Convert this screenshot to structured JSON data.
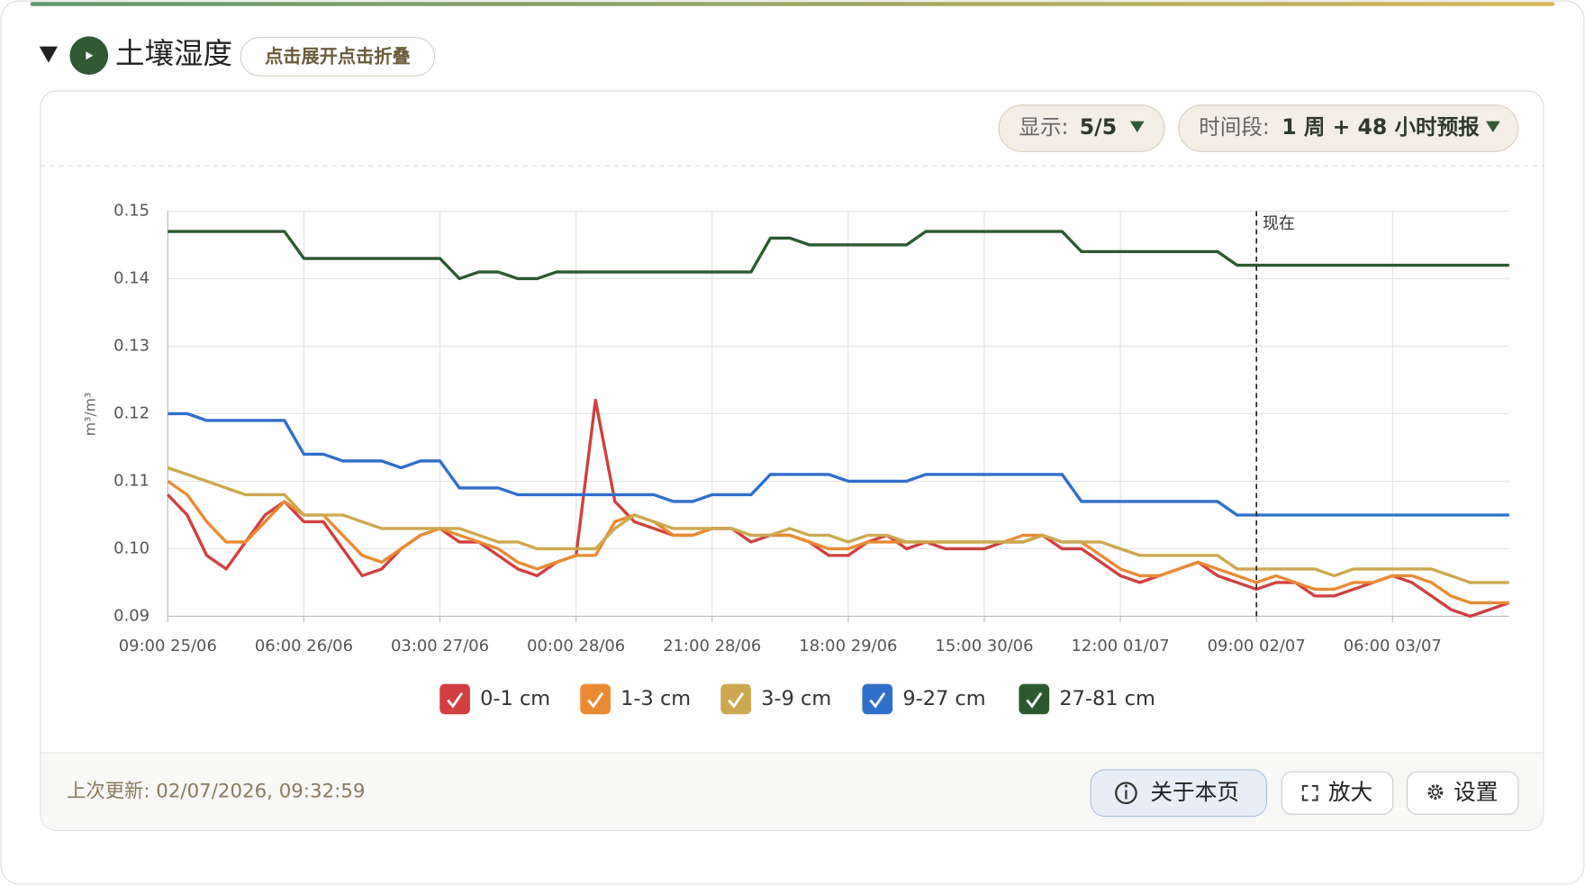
{
  "header": {
    "title": "土壤湿度",
    "toggle": "点击展开点击折叠"
  },
  "controls": {
    "display_label": "显示:",
    "display_value": "5/5",
    "period_label": "时间段:",
    "period_value": "1 周 + 48 小时预报"
  },
  "chart_data": {
    "type": "line",
    "y_label": "m³/m³",
    "grid": true,
    "categories": [
      "09:00 25/06",
      null,
      null,
      null,
      null,
      null,
      null,
      "06:00 26/06",
      null,
      null,
      null,
      null,
      null,
      null,
      "03:00 27/06",
      null,
      null,
      null,
      null,
      null,
      null,
      "00:00 28/06",
      null,
      null,
      null,
      null,
      null,
      null,
      "21:00 28/06",
      null,
      null,
      null,
      null,
      null,
      null,
      "18:00 29/06",
      null,
      null,
      null,
      null,
      null,
      null,
      "15:00 30/06",
      null,
      null,
      null,
      null,
      null,
      null,
      "12:00 01/07",
      null,
      null,
      null,
      null,
      null,
      null,
      "09:00 02/07",
      null,
      null,
      null,
      null,
      null,
      null,
      "06:00 03/07",
      null,
      null,
      null,
      null,
      null,
      null
    ],
    "ylim": [
      0.09,
      0.15
    ],
    "yticks": [
      0.09,
      {
        "value": 0.1,
        "label": "0.10"
      },
      0.11,
      0.12,
      0.13,
      0.14,
      0.15
    ],
    "annotations": [
      {
        "text": "现在",
        "x": "09:00 02/07"
      }
    ],
    "series": [
      {
        "name": "0-1 cm",
        "color": "#d13f3f",
        "values": [
          0.108,
          0.105,
          0.099,
          0.097,
          0.101,
          0.105,
          0.107,
          0.104,
          0.104,
          0.1,
          0.096,
          0.097,
          0.1,
          0.102,
          0.103,
          0.101,
          0.101,
          0.099,
          0.097,
          0.096,
          0.098,
          0.099,
          0.122,
          0.107,
          0.104,
          0.103,
          0.102,
          0.102,
          0.103,
          0.103,
          0.101,
          0.102,
          0.102,
          0.101,
          0.099,
          0.099,
          0.101,
          0.102,
          0.1,
          0.101,
          0.1,
          0.1,
          0.1,
          0.101,
          0.101,
          0.102,
          0.1,
          0.1,
          0.098,
          0.096,
          0.095,
          0.096,
          0.097,
          0.098,
          0.096,
          0.095,
          0.094,
          0.095,
          0.095,
          0.093,
          0.093,
          0.094,
          0.095,
          0.096,
          0.095,
          0.093,
          0.091,
          0.09,
          0.091,
          0.092
        ]
      },
      {
        "name": "1-3 cm",
        "color": "#ea8a33",
        "values": [
          0.11,
          0.108,
          0.104,
          0.101,
          0.101,
          0.104,
          0.107,
          0.105,
          0.105,
          0.102,
          0.099,
          0.098,
          0.1,
          0.102,
          0.103,
          0.102,
          0.101,
          0.1,
          0.098,
          0.097,
          0.098,
          0.099,
          0.099,
          0.104,
          0.105,
          0.104,
          0.102,
          0.102,
          0.103,
          0.103,
          0.102,
          0.102,
          0.102,
          0.101,
          0.1,
          0.1,
          0.101,
          0.101,
          0.101,
          0.101,
          0.101,
          0.101,
          0.101,
          0.101,
          0.102,
          0.102,
          0.101,
          0.101,
          0.099,
          0.097,
          0.096,
          0.096,
          0.097,
          0.098,
          0.097,
          0.096,
          0.095,
          0.096,
          0.095,
          0.094,
          0.094,
          0.095,
          0.095,
          0.096,
          0.096,
          0.095,
          0.093,
          0.092,
          0.092,
          0.092
        ]
      },
      {
        "name": "3-9 cm",
        "color": "#cda850",
        "values": [
          0.112,
          0.111,
          0.11,
          0.109,
          0.108,
          0.108,
          0.108,
          0.105,
          0.105,
          0.105,
          0.104,
          0.103,
          0.103,
          0.103,
          0.103,
          0.103,
          0.102,
          0.101,
          0.101,
          0.1,
          0.1,
          0.1,
          0.1,
          0.103,
          0.105,
          0.104,
          0.103,
          0.103,
          0.103,
          0.103,
          0.102,
          0.102,
          0.103,
          0.102,
          0.102,
          0.101,
          0.102,
          0.102,
          0.101,
          0.101,
          0.101,
          0.101,
          0.101,
          0.101,
          0.101,
          0.102,
          0.101,
          0.101,
          0.101,
          0.1,
          0.099,
          0.099,
          0.099,
          0.099,
          0.099,
          0.097,
          0.097,
          0.097,
          0.097,
          0.097,
          0.096,
          0.097,
          0.097,
          0.097,
          0.097,
          0.097,
          0.096,
          0.095,
          0.095,
          0.095
        ]
      },
      {
        "name": "9-27 cm",
        "color": "#2e6fcc",
        "values": [
          0.12,
          0.12,
          0.119,
          0.119,
          0.119,
          0.119,
          0.119,
          0.114,
          0.114,
          0.113,
          0.113,
          0.113,
          0.112,
          0.113,
          0.113,
          0.109,
          0.109,
          0.109,
          0.108,
          0.108,
          0.108,
          0.108,
          0.108,
          0.108,
          0.108,
          0.108,
          0.107,
          0.107,
          0.108,
          0.108,
          0.108,
          0.111,
          0.111,
          0.111,
          0.111,
          0.11,
          0.11,
          0.11,
          0.11,
          0.111,
          0.111,
          0.111,
          0.111,
          0.111,
          0.111,
          0.111,
          0.111,
          0.107,
          0.107,
          0.107,
          0.107,
          0.107,
          0.107,
          0.107,
          0.107,
          0.105,
          0.105,
          0.105,
          0.105,
          0.105,
          0.105,
          0.105,
          0.105,
          0.105,
          0.105,
          0.105,
          0.105,
          0.105,
          0.105,
          0.105
        ]
      },
      {
        "name": "27-81 cm",
        "color": "#2b5a2f",
        "values": [
          0.147,
          0.147,
          0.147,
          0.147,
          0.147,
          0.147,
          0.147,
          0.143,
          0.143,
          0.143,
          0.143,
          0.143,
          0.143,
          0.143,
          0.143,
          0.14,
          0.141,
          0.141,
          0.14,
          0.14,
          0.141,
          0.141,
          0.141,
          0.141,
          0.141,
          0.141,
          0.141,
          0.141,
          0.141,
          0.141,
          0.141,
          0.146,
          0.146,
          0.145,
          0.145,
          0.145,
          0.145,
          0.145,
          0.145,
          0.147,
          0.147,
          0.147,
          0.147,
          0.147,
          0.147,
          0.147,
          0.147,
          0.144,
          0.144,
          0.144,
          0.144,
          0.144,
          0.144,
          0.144,
          0.144,
          0.142,
          0.142,
          0.142,
          0.142,
          0.142,
          0.142,
          0.142,
          0.142,
          0.142,
          0.142,
          0.142,
          0.142,
          0.142,
          0.142,
          0.142
        ]
      }
    ]
  },
  "footer": {
    "last_updated": "上次更新: 02/07/2026, 09:32:59",
    "buttons": [
      "关于本页",
      "放大",
      "设置"
    ]
  }
}
